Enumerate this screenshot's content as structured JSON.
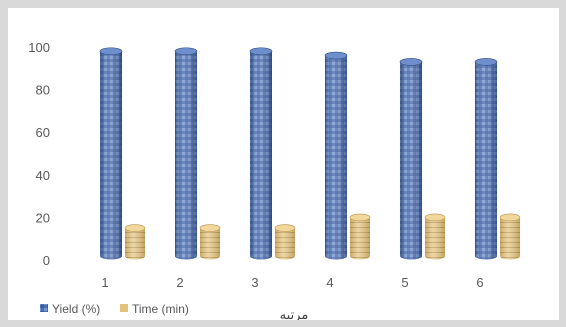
{
  "chart_data": {
    "type": "bar",
    "style": "3d-cylinder",
    "categories": [
      "1",
      "2",
      "3",
      "4",
      "5",
      "6"
    ],
    "series": [
      {
        "name": "Yield (%)",
        "values": [
          98,
          98,
          98,
          96,
          93,
          93
        ],
        "color": "#4a6fb5"
      },
      {
        "name": "Time (min)",
        "values": [
          15,
          15,
          15,
          20,
          20,
          20
        ],
        "color": "#e3c27e"
      }
    ],
    "xlabel": "مرتبه",
    "ylabel": "",
    "ylim": [
      0,
      100
    ],
    "yticks": [
      0,
      20,
      40,
      60,
      80,
      100
    ],
    "grid": false,
    "legend": "bottom-left"
  }
}
